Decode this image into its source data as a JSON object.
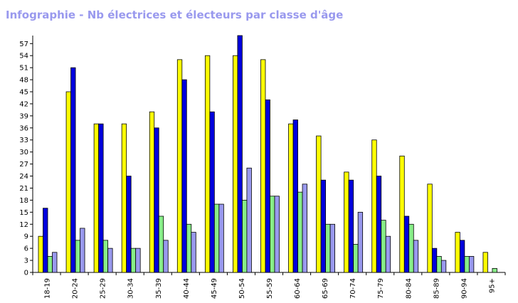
{
  "chart_data": {
    "type": "bar",
    "title": "Infographie - Nb électrices et électeurs par classe d'âge",
    "xlabel": "",
    "ylabel": "",
    "ylim": [
      0,
      59
    ],
    "yticks": [
      0,
      3,
      6,
      9,
      12,
      15,
      18,
      21,
      24,
      27,
      30,
      33,
      36,
      39,
      42,
      45,
      48,
      51,
      54,
      57
    ],
    "grid": false,
    "legend": "none",
    "categories": [
      "18-19",
      "20-24",
      "25-29",
      "30-34",
      "35-39",
      "40-44",
      "45-49",
      "50-54",
      "55-59",
      "60-64",
      "65-69",
      "70-74",
      "75-79",
      "80-84",
      "85-89",
      "90-94",
      "95+"
    ],
    "series": [
      {
        "color": "#ffff00",
        "values": [
          9,
          45,
          37,
          37,
          40,
          53,
          54,
          54,
          53,
          37,
          34,
          25,
          33,
          29,
          22,
          10,
          5
        ]
      },
      {
        "color": "#0000dd",
        "values": [
          16,
          51,
          37,
          24,
          36,
          48,
          40,
          59,
          43,
          38,
          23,
          23,
          24,
          14,
          6,
          8,
          0
        ]
      },
      {
        "color": "#88ee88",
        "values": [
          4,
          8,
          8,
          6,
          14,
          12,
          17,
          18,
          19,
          20,
          12,
          7,
          13,
          12,
          4,
          4,
          1
        ]
      },
      {
        "color": "#9999ee",
        "values": [
          5,
          11,
          6,
          6,
          8,
          10,
          17,
          26,
          19,
          22,
          12,
          15,
          9,
          8,
          3,
          4,
          0
        ]
      }
    ]
  }
}
